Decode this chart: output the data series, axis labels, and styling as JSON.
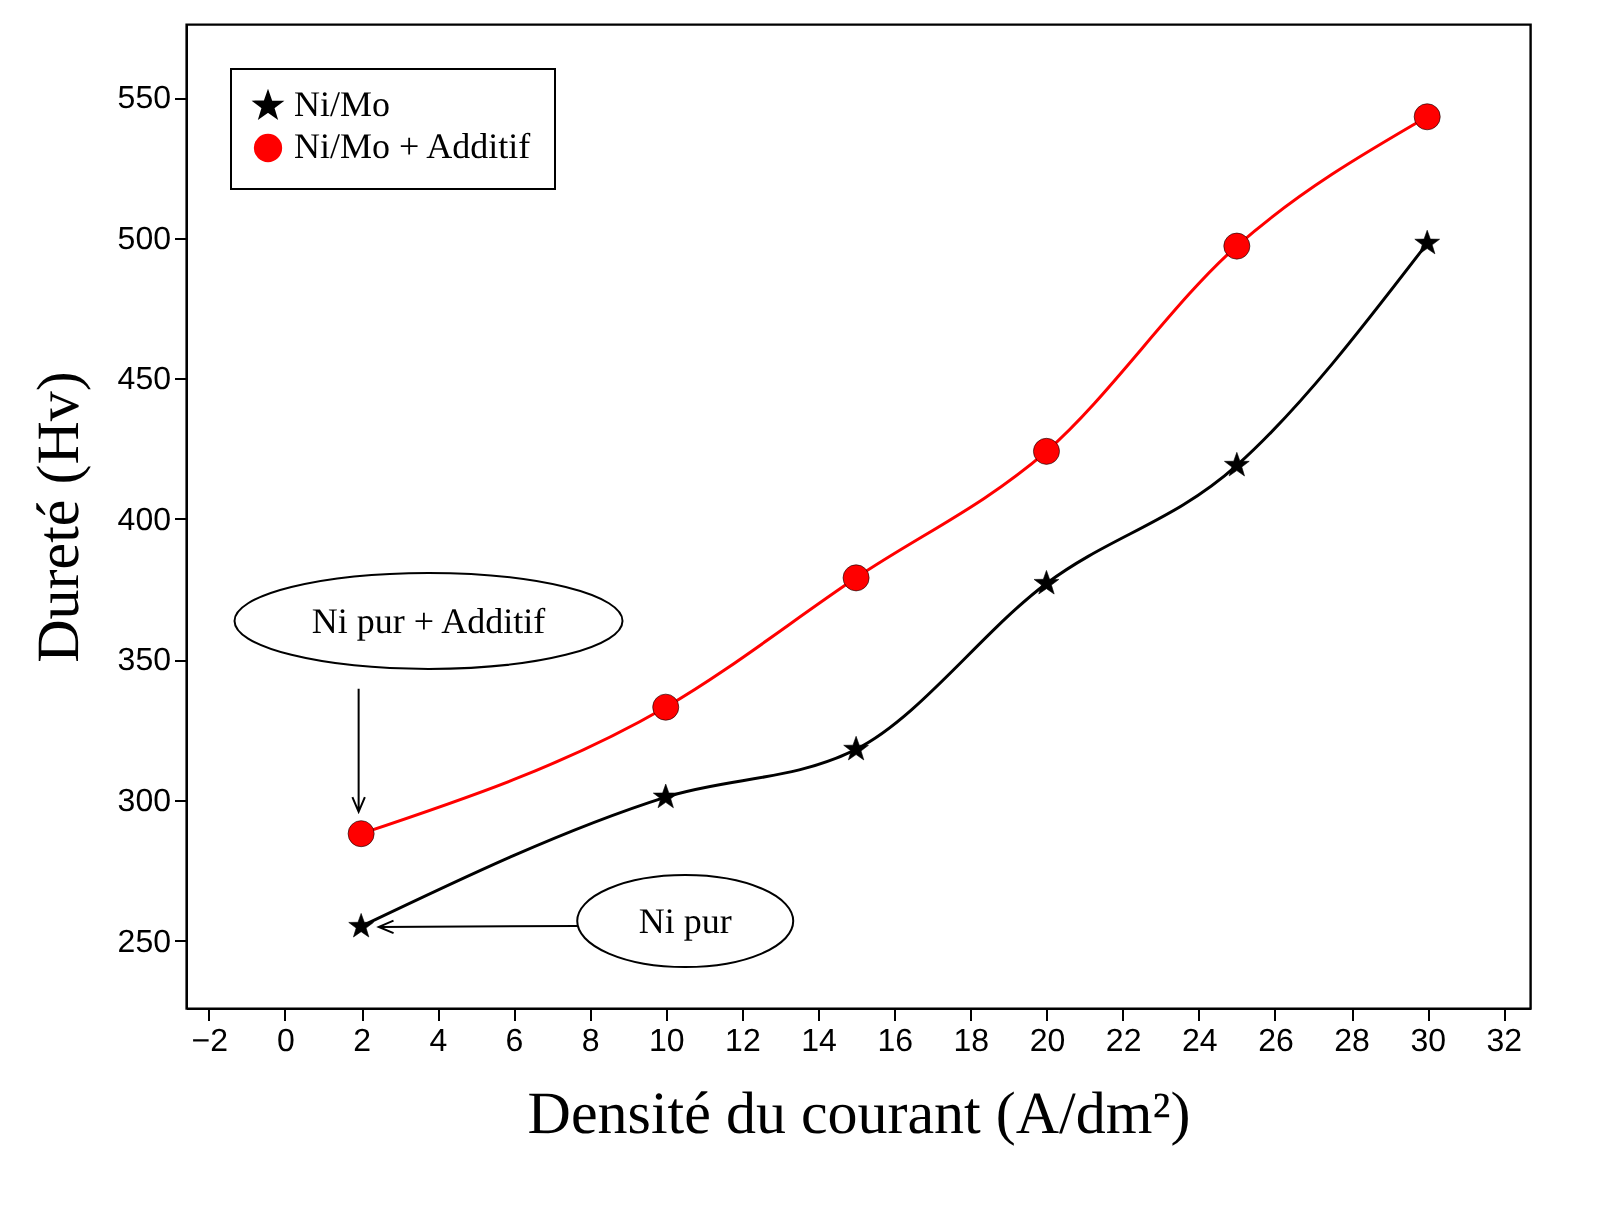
{
  "chart_data": {
    "type": "line",
    "xlabel": "Densité du courant (A/dm²)",
    "ylabel": "Dureté (Hv)",
    "x": [
      2,
      10,
      15,
      20,
      25,
      30
    ],
    "series": [
      {
        "name": "Ni/Mo",
        "color": "#000000",
        "marker": "star",
        "values": [
          255,
          301,
          318,
          377,
          419,
          498
        ]
      },
      {
        "name": "Ni/Mo + Additif",
        "color": "#ff0000",
        "marker": "circle",
        "values": [
          288,
          333,
          379,
          424,
          497,
          543
        ]
      }
    ],
    "xlim": [
      -2.6,
      32.7
    ],
    "xticks": [
      -2,
      0,
      2,
      4,
      6,
      8,
      10,
      12,
      14,
      16,
      18,
      20,
      22,
      24,
      26,
      28,
      30,
      32
    ],
    "ylim": [
      226,
      576
    ],
    "yticks": [
      250,
      300,
      350,
      400,
      450,
      500,
      550
    ],
    "grid": false,
    "legend": "top left",
    "line_style": "solid",
    "annotations": [
      "Ni pur + Additif",
      "Ni pur"
    ]
  }
}
